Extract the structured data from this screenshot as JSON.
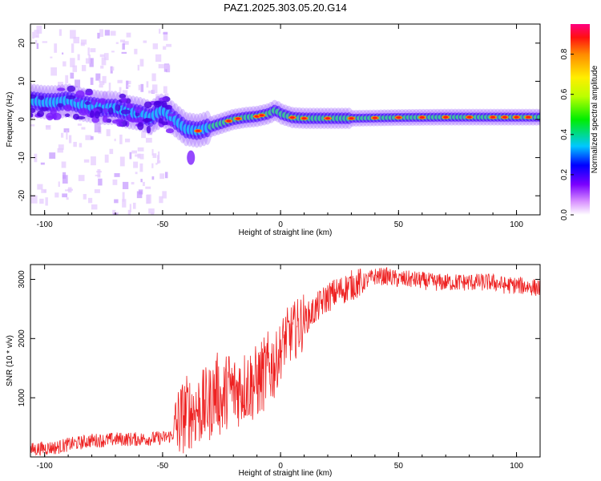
{
  "title": "PAZ1.2025.303.05.20.G14",
  "colors": {
    "snr_line": "#ee2222",
    "axis": "#000000",
    "background": "#ffffff"
  },
  "chart_data": [
    {
      "type": "heatmap",
      "xlabel": "Height of straight line (km)",
      "ylabel": "Frequency (Hz)",
      "xlim": [
        -106,
        110
      ],
      "ylim": [
        -25,
        25
      ],
      "xticks": [
        -100,
        -50,
        0,
        50,
        100
      ],
      "yticks": [
        -20,
        -10,
        0,
        10,
        20
      ],
      "ridge": {
        "x": [
          -106,
          -100,
          -95,
          -90,
          -85,
          -80,
          -75,
          -70,
          -65,
          -60,
          -55,
          -50,
          -45,
          -40,
          -35,
          -30,
          -25,
          -20,
          -15,
          -10,
          -5,
          -2,
          0,
          5,
          10,
          20,
          30,
          50,
          70,
          90,
          110
        ],
        "frequency": [
          5,
          4.5,
          4.5,
          5,
          4,
          3.5,
          3,
          3,
          2,
          1.5,
          0.5,
          2.5,
          0,
          -2.5,
          -3,
          -2,
          -1,
          0,
          0.5,
          0.8,
          1.5,
          2.5,
          1.5,
          0.5,
          0.3,
          0.3,
          0.3,
          0.5,
          0.6,
          0.6,
          0.6
        ]
      },
      "colorbar": {
        "label": "Normalized spectral amplitude",
        "ticks": [
          0.0,
          0.2,
          0.4,
          0.6,
          0.8
        ],
        "tick_labels": [
          "0.0",
          "0.2",
          "0.4",
          "0.6",
          "0.8"
        ],
        "range": [
          0,
          0.95
        ]
      }
    },
    {
      "type": "line",
      "xlabel": "Height of straight line (km)",
      "ylabel": "SNR (10 * v/v)",
      "xlim": [
        -106,
        110
      ],
      "ylim": [
        0,
        3250
      ],
      "xticks": [
        -100,
        -50,
        0,
        50,
        100
      ],
      "yticks": [
        1000,
        2000,
        3000
      ],
      "series": [
        {
          "name": "SNR",
          "x": [
            -106,
            -100,
            -95,
            -90,
            -85,
            -80,
            -75,
            -70,
            -65,
            -60,
            -55,
            -50,
            -46,
            -43,
            -40,
            -35,
            -30,
            -27,
            -25,
            -22,
            -20,
            -15,
            -10,
            -5,
            -2,
            0,
            2,
            5,
            10,
            15,
            20,
            25,
            30,
            35,
            40,
            45,
            50,
            55,
            60,
            65,
            70,
            75,
            80,
            85,
            90,
            95,
            100,
            105,
            110
          ],
          "y": [
            120,
            150,
            160,
            210,
            240,
            280,
            280,
            300,
            300,
            300,
            310,
            320,
            360,
            600,
            750,
            800,
            900,
            1150,
            900,
            1200,
            1100,
            1200,
            1250,
            1500,
            1600,
            1800,
            2000,
            2100,
            2300,
            2500,
            2700,
            2800,
            2900,
            2950,
            3050,
            3050,
            3000,
            3000,
            2980,
            2950,
            2950,
            2950,
            2950,
            2950,
            2950,
            2900,
            2900,
            2880,
            2850
          ]
        }
      ]
    }
  ]
}
